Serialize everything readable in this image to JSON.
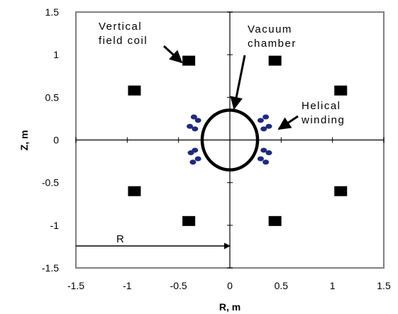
{
  "chart_data": {
    "type": "scatter",
    "title": "",
    "xlabel": "R, m",
    "ylabel": "Z, m",
    "xlim": [
      -1.5,
      1.5
    ],
    "ylim": [
      -1.5,
      1.5
    ],
    "xticks": [
      "-1.5",
      "-1",
      "-0.5",
      "0",
      "0.5",
      "1",
      "1.5"
    ],
    "yticks": [
      "1.5",
      "1",
      "0.5",
      "0",
      "-0.5",
      "-1",
      "-1.5"
    ],
    "grid": false,
    "axes_through_origin": true,
    "series": [
      {
        "marker": "square",
        "color": "#000000",
        "points": [
          [
            -0.4,
            0.93
          ],
          [
            0.44,
            0.93
          ],
          [
            -0.93,
            0.58
          ],
          [
            1.08,
            0.58
          ],
          [
            -0.93,
            -0.6
          ],
          [
            1.08,
            -0.6
          ],
          [
            -0.4,
            -0.95
          ],
          [
            0.44,
            -0.95
          ]
        ]
      },
      {
        "marker": "ellipse",
        "color": "#000000",
        "center": [
          0,
          0
        ],
        "radius_r": 0.27,
        "radius_z": 0.35
      },
      {
        "marker": "dot",
        "color": "#1f2a7a",
        "points": [
          [
            -0.35,
            0.27
          ],
          [
            -0.31,
            0.23
          ],
          [
            -0.39,
            0.16
          ],
          [
            -0.34,
            0.13
          ],
          [
            -0.34,
            -0.12
          ],
          [
            -0.38,
            -0.15
          ],
          [
            -0.31,
            -0.22
          ],
          [
            -0.36,
            -0.26
          ],
          [
            0.3,
            0.23
          ],
          [
            0.35,
            0.27
          ],
          [
            0.33,
            0.13
          ],
          [
            0.38,
            0.16
          ],
          [
            0.33,
            -0.12
          ],
          [
            0.38,
            -0.15
          ],
          [
            0.3,
            -0.22
          ],
          [
            0.35,
            -0.26
          ]
        ]
      }
    ],
    "annotations": {
      "vertical_field_coil": [
        "Vertical",
        "field coil"
      ],
      "vacuum_chamber": [
        "Vacuum",
        "chamber"
      ],
      "helical_winding": [
        "Helical",
        "winding"
      ],
      "radius": "R"
    }
  }
}
